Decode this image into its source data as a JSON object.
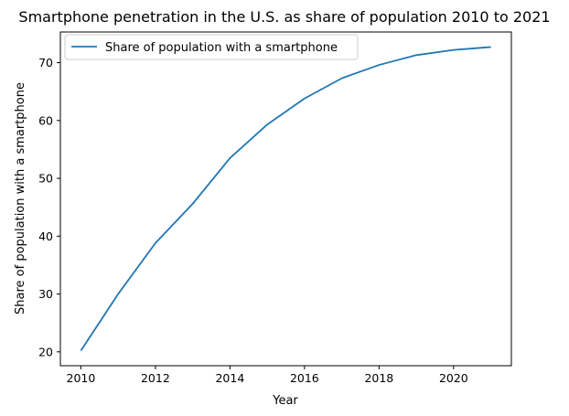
{
  "chart_data": {
    "type": "line",
    "title": "Smartphone penetration in the U.S. as share of population 2010 to 2021",
    "xlabel": "Year",
    "ylabel": "Share of population with a smartphone",
    "x": [
      2010,
      2011,
      2012,
      2013,
      2014,
      2015,
      2016,
      2017,
      2018,
      2019,
      2020,
      2021
    ],
    "series": [
      {
        "name": "Share of population with a smartphone",
        "values": [
          20.2,
          30.0,
          38.8,
          45.6,
          53.5,
          59.3,
          63.8,
          67.3,
          69.6,
          71.3,
          72.2,
          72.7
        ],
        "color": "#1f77b4"
      }
    ],
    "xlim": [
      2009.45,
      2021.55
    ],
    "ylim": [
      17.6,
      75.3
    ],
    "xticks": [
      2010,
      2012,
      2014,
      2016,
      2018,
      2020
    ],
    "yticks": [
      20,
      30,
      40,
      50,
      60,
      70
    ],
    "grid": false,
    "legend": "top-left"
  }
}
